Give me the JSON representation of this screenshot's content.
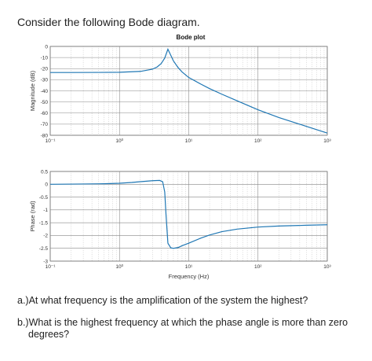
{
  "intro": "Consider the following Bode diagram.",
  "questions": [
    {
      "label": "a.)",
      "text": "At what frequency is the amplification of the system the highest?"
    },
    {
      "label": "b.)",
      "text": "What is the highest frequency at which the phase angle is more than zero",
      "text_cont": "degrees?"
    }
  ],
  "chart_data": [
    {
      "type": "line",
      "title": "Bode plot",
      "ylabel": "Magnitude (dB)",
      "xlabel": "",
      "xscale": "log",
      "xlim": [
        0.1,
        1000
      ],
      "ylim": [
        -80,
        0
      ],
      "xticks": [
        0.1,
        1,
        10,
        100,
        1000
      ],
      "xtick_labels": [
        "10⁻¹",
        "10⁰",
        "10¹",
        "10²",
        "10³"
      ],
      "yticks": [
        0,
        -10,
        -20,
        -30,
        -40,
        -50,
        -60,
        -70,
        -80
      ],
      "ytick_labels": [
        "0",
        "-10",
        "-20",
        "-30",
        "-40",
        "-50",
        "-60",
        "-70",
        "-80"
      ],
      "grid": true,
      "series": [
        {
          "color": "#1f77b4",
          "x": [
            0.1,
            0.2,
            0.5,
            1,
            2,
            3,
            3.5,
            4,
            4.5,
            5,
            5.5,
            6,
            7,
            8,
            10,
            15,
            20,
            30,
            50,
            100,
            200,
            500,
            1000
          ],
          "y": [
            -23.5,
            -23.5,
            -23.4,
            -23.3,
            -22.5,
            -20.5,
            -18.5,
            -15.5,
            -10.5,
            -2.5,
            -8,
            -13,
            -19,
            -23,
            -28,
            -34,
            -38,
            -43,
            -49,
            -57,
            -64,
            -72,
            -78
          ]
        }
      ]
    },
    {
      "type": "line",
      "title": "",
      "ylabel": "Phase (rad)",
      "xlabel": "Frequency (Hz)",
      "xscale": "log",
      "xlim": [
        0.1,
        1000
      ],
      "ylim": [
        -3,
        0.5
      ],
      "xticks": [
        0.1,
        1,
        10,
        100,
        1000
      ],
      "xtick_labels": [
        "10⁻¹",
        "10⁰",
        "10¹",
        "10²",
        "10³"
      ],
      "yticks": [
        0.5,
        0,
        -0.5,
        -1,
        -1.5,
        -2,
        -2.5,
        -3
      ],
      "ytick_labels": [
        "0.5",
        "0",
        "-0.5",
        "-1",
        "-1.5",
        "-2",
        "-2.5",
        "-3"
      ],
      "grid": true,
      "series": [
        {
          "color": "#1f77b4",
          "x": [
            0.1,
            0.3,
            0.6,
            1,
            1.5,
            2,
            3,
            3.8,
            4.2,
            4.5,
            4.7,
            5,
            5.5,
            6,
            7,
            8,
            10,
            15,
            20,
            30,
            50,
            100,
            200,
            500,
            1000
          ],
          "y": [
            0,
            0.01,
            0.02,
            0.04,
            0.07,
            0.1,
            0.14,
            0.15,
            0.1,
            -0.3,
            -1.2,
            -2.3,
            -2.48,
            -2.5,
            -2.47,
            -2.4,
            -2.3,
            -2.1,
            -1.98,
            -1.85,
            -1.75,
            -1.67,
            -1.63,
            -1.6,
            -1.58
          ]
        }
      ]
    }
  ]
}
